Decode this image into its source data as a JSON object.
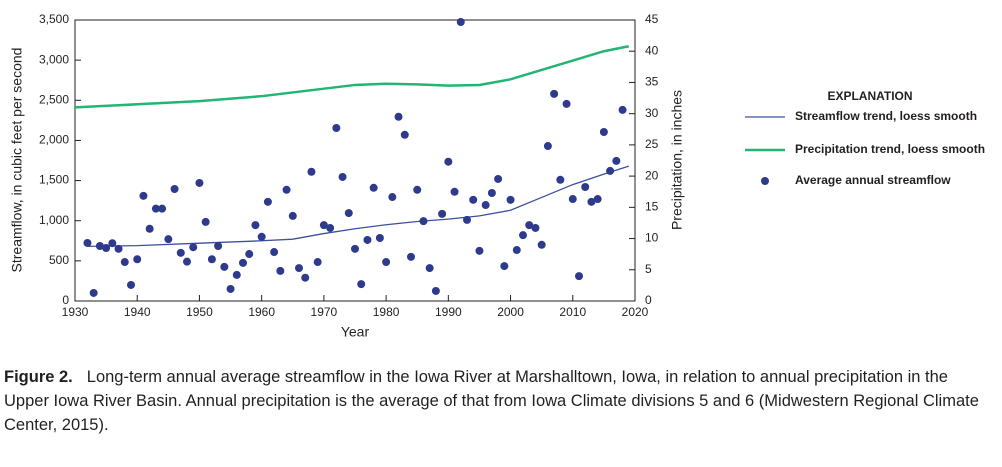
{
  "chart_data": {
    "type": "combo",
    "xlabel": "Year",
    "ylabel": "Streamflow, in cubic feet per second",
    "y2label": "Precipitation, in inches",
    "xlim": [
      1930,
      2020
    ],
    "xticks": [
      1930,
      1940,
      1950,
      1960,
      1970,
      1980,
      1990,
      2000,
      2010,
      2020
    ],
    "ylim": [
      0,
      3500
    ],
    "yticks": [
      0,
      500,
      {
        "value": 1000,
        "label": "1,000"
      },
      {
        "value": 1500,
        "label": "1,500"
      },
      {
        "value": 2000,
        "label": "2,000"
      },
      {
        "value": 2500,
        "label": "2,500"
      },
      {
        "value": 3000,
        "label": "3,000"
      },
      {
        "value": 3500,
        "label": "3,500"
      }
    ],
    "y2lim": [
      0,
      45
    ],
    "y2ticks": [
      0,
      5,
      10,
      15,
      20,
      25,
      30,
      35,
      40,
      45
    ],
    "legend_title": "EXPLANATION",
    "series": [
      {
        "name": "Streamflow trend, loess smooth",
        "type": "line",
        "color": "#3d4fa1",
        "x": [
          1932,
          1940,
          1950,
          1960,
          1965,
          1970,
          1975,
          1980,
          1985,
          1990,
          1995,
          2000,
          2005,
          2010,
          2015,
          2019
        ],
        "values": [
          680,
          690,
          720,
          750,
          770,
          840,
          900,
          950,
          990,
          1020,
          1060,
          1130,
          1290,
          1450,
          1580,
          1680
        ]
      },
      {
        "name": "Precipitation trend, loess smooth",
        "type": "line",
        "color": "#22b573",
        "axis": "y2",
        "x": [
          1930,
          1940,
          1950,
          1960,
          1970,
          1975,
          1980,
          1985,
          1990,
          1995,
          2000,
          2005,
          2010,
          2015,
          2019
        ],
        "values": [
          31,
          31.5,
          32,
          32.8,
          34,
          34.6,
          34.8,
          34.7,
          34.5,
          34.6,
          35.5,
          37,
          38.5,
          40,
          40.8
        ]
      },
      {
        "name": "Average annual streamflow",
        "type": "scatter",
        "color": "#2e3a8c",
        "x": [
          1932,
          1933,
          1934,
          1935,
          1936,
          1937,
          1938,
          1939,
          1940,
          1941,
          1942,
          1943,
          1944,
          1945,
          1946,
          1947,
          1948,
          1949,
          1950,
          1951,
          1952,
          1953,
          1954,
          1955,
          1956,
          1957,
          1958,
          1959,
          1960,
          1961,
          1962,
          1963,
          1964,
          1965,
          1966,
          1967,
          1968,
          1969,
          1970,
          1971,
          1972,
          1973,
          1974,
          1975,
          1976,
          1977,
          1978,
          1979,
          1980,
          1981,
          1982,
          1983,
          1984,
          1985,
          1986,
          1987,
          1988,
          1989,
          1990,
          1991,
          1992,
          1993,
          1994,
          1995,
          1996,
          1997,
          1998,
          1999,
          2000,
          2001,
          2002,
          2003,
          2004,
          2005,
          2006,
          2007,
          2008,
          2009,
          2010,
          2011,
          2012,
          2013,
          2014,
          2015,
          2016,
          2017,
          2018
        ],
        "values": [
          723,
          100,
          685,
          660,
          720,
          650,
          485,
          200,
          520,
          1310,
          900,
          1150,
          1150,
          770,
          1395,
          600,
          490,
          670,
          1470,
          985,
          520,
          685,
          425,
          150,
          325,
          475,
          585,
          945,
          800,
          1235,
          610,
          375,
          1385,
          1060,
          410,
          290,
          1610,
          485,
          945,
          910,
          2155,
          1545,
          1095,
          650,
          210,
          760,
          1410,
          785,
          485,
          1295,
          2295,
          2070,
          550,
          1385,
          995,
          410,
          125,
          1085,
          1735,
          1360,
          3475,
          1010,
          1260,
          625,
          1195,
          1345,
          1520,
          435,
          1260,
          635,
          820,
          945,
          910,
          700,
          1930,
          2580,
          1510,
          2455,
          1270,
          310,
          1420,
          1235,
          1270,
          2105,
          1620,
          1745,
          2380
        ]
      }
    ]
  },
  "caption": {
    "label": "Figure 2.",
    "text": "Long-term annual average streamflow in the Iowa River at Marshalltown, Iowa, in relation to annual precipitation in the Upper Iowa River Basin. Annual precipitation is the average of that from Iowa Climate divisions 5 and 6 (Midwestern Regional Climate Center, 2015)."
  }
}
